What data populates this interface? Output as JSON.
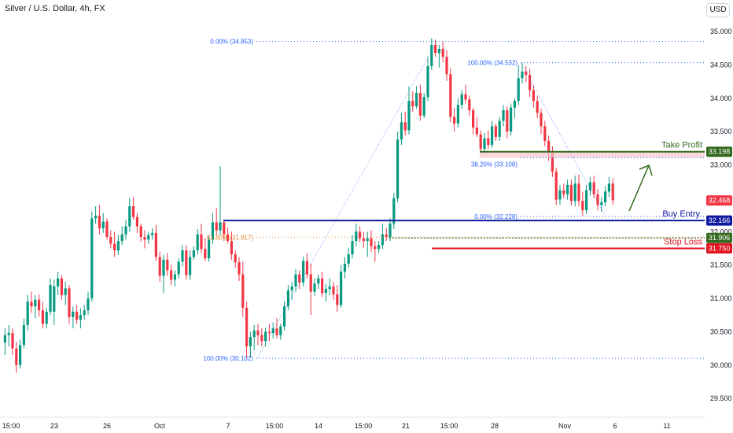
{
  "header": {
    "title": "Silver / U.S. Dollar, 4h, FX",
    "currency": "USD"
  },
  "colors": {
    "up": "#089981",
    "down": "#f23645",
    "fib": "#2962ff",
    "take_profit": "#33691e",
    "buy_entry": "#0d1aa0",
    "stop_loss": "#e0131f",
    "level_orange": "#e08a2c"
  },
  "chart_data": {
    "type": "candlestick",
    "title": "Silver / U.S. Dollar, 4h, FX",
    "ylim": [
      29.35,
      35.25
    ],
    "yticks": [
      "35.000",
      "34.500",
      "34.000",
      "33.500",
      "33.000",
      "32.500",
      "32.000",
      "31.500",
      "31.000",
      "30.500",
      "30.000",
      "29.500"
    ],
    "xticks": [
      "15:00",
      "23",
      "26",
      "Oct",
      "7",
      "15:00",
      "14",
      "15:00",
      "21",
      "15:00",
      "28",
      "Nov",
      "6",
      "11"
    ],
    "series": [
      {
        "ohlc": [
          [
            30.34,
            30.55,
            30.15,
            30.45
          ],
          [
            30.45,
            30.6,
            30.28,
            30.48
          ],
          [
            30.48,
            30.55,
            30.15,
            30.25
          ],
          [
            30.25,
            30.35,
            29.88,
            30.0
          ],
          [
            30.0,
            30.38,
            29.95,
            30.3
          ],
          [
            30.3,
            30.7,
            30.25,
            30.6
          ],
          [
            30.6,
            31.05,
            30.52,
            30.95
          ],
          [
            30.95,
            31.1,
            30.78,
            30.88
          ],
          [
            30.88,
            31.05,
            30.7,
            30.98
          ],
          [
            30.98,
            31.06,
            30.72,
            30.82
          ],
          [
            30.82,
            30.95,
            30.55,
            30.62
          ],
          [
            30.62,
            30.86,
            30.55,
            30.8
          ],
          [
            30.8,
            31.3,
            30.75,
            31.2
          ],
          [
            30.8,
            31.28,
            30.6,
            31.18
          ],
          [
            31.18,
            31.4,
            31.05,
            31.3
          ],
          [
            31.3,
            31.35,
            30.98,
            31.05
          ],
          [
            31.05,
            31.25,
            30.9,
            31.15
          ],
          [
            31.15,
            31.2,
            30.62,
            30.72
          ],
          [
            30.72,
            30.88,
            30.55,
            30.8
          ],
          [
            30.8,
            30.9,
            30.62,
            30.68
          ],
          [
            30.68,
            30.85,
            30.55,
            30.75
          ],
          [
            30.75,
            30.9,
            30.68,
            30.82
          ],
          [
            30.82,
            31.1,
            30.75,
            31.0
          ],
          [
            31.0,
            32.3,
            30.95,
            32.2
          ],
          [
            32.2,
            32.38,
            32.12,
            32.24
          ],
          [
            32.24,
            32.4,
            31.96,
            32.05
          ],
          [
            32.05,
            32.28,
            31.98,
            32.15
          ],
          [
            32.15,
            32.2,
            31.88,
            31.92
          ],
          [
            31.92,
            32.02,
            31.75,
            31.82
          ],
          [
            31.82,
            32.0,
            31.62,
            31.72
          ],
          [
            31.72,
            31.95,
            31.65,
            31.86
          ],
          [
            31.86,
            32.08,
            31.8,
            31.96
          ],
          [
            31.96,
            32.18,
            31.88,
            32.08
          ],
          [
            32.08,
            32.5,
            32.0,
            32.38
          ],
          [
            32.38,
            32.52,
            32.18,
            32.22
          ],
          [
            32.22,
            32.28,
            31.98,
            32.08
          ],
          [
            32.08,
            32.12,
            31.85,
            31.92
          ],
          [
            31.92,
            32.02,
            31.75,
            31.88
          ],
          [
            31.88,
            32.0,
            31.82,
            31.95
          ],
          [
            31.95,
            32.05,
            31.88,
            31.98
          ],
          [
            31.98,
            32.1,
            31.56,
            31.62
          ],
          [
            31.62,
            31.7,
            31.25,
            31.34
          ],
          [
            31.34,
            31.65,
            31.08,
            31.58
          ],
          [
            31.58,
            31.68,
            31.34,
            31.42
          ],
          [
            31.42,
            31.5,
            31.2,
            31.28
          ],
          [
            31.28,
            31.42,
            31.18,
            31.36
          ],
          [
            31.36,
            31.6,
            31.3,
            31.55
          ],
          [
            31.55,
            31.8,
            31.48,
            31.72
          ],
          [
            31.72,
            31.8,
            31.28,
            31.35
          ],
          [
            31.35,
            31.72,
            31.28,
            31.62
          ],
          [
            31.62,
            31.78,
            31.58,
            31.72
          ],
          [
            31.72,
            32.04,
            31.66,
            31.96
          ],
          [
            31.96,
            32.12,
            31.68,
            31.74
          ],
          [
            31.74,
            31.9,
            31.56,
            31.6
          ],
          [
            31.6,
            31.95,
            31.55,
            31.88
          ],
          [
            31.88,
            32.28,
            31.82,
            32.14
          ],
          [
            32.14,
            32.35,
            31.94,
            32.02
          ],
          [
            32.02,
            32.98,
            31.95,
            32.14
          ],
          [
            32.14,
            32.18,
            31.86,
            31.96
          ],
          [
            31.96,
            32.06,
            31.82,
            31.86
          ],
          [
            31.86,
            32.0,
            31.58,
            31.66
          ],
          [
            31.66,
            31.72,
            31.46,
            31.54
          ],
          [
            31.54,
            31.62,
            31.26,
            31.36
          ],
          [
            31.36,
            31.55,
            30.72,
            30.86
          ],
          [
            30.86,
            30.95,
            30.1,
            30.28
          ],
          [
            30.28,
            30.5,
            30.12,
            30.42
          ],
          [
            30.42,
            30.6,
            30.22,
            30.52
          ],
          [
            30.52,
            30.62,
            30.3,
            30.45
          ],
          [
            30.45,
            30.55,
            30.28,
            30.36
          ],
          [
            30.36,
            30.56,
            30.28,
            30.5
          ],
          [
            30.5,
            30.62,
            30.36,
            30.48
          ],
          [
            30.48,
            30.64,
            30.4,
            30.55
          ],
          [
            30.55,
            30.7,
            30.4,
            30.45
          ],
          [
            30.45,
            30.62,
            30.38,
            30.58
          ],
          [
            30.58,
            30.96,
            30.52,
            30.88
          ],
          [
            30.88,
            31.2,
            30.82,
            31.12
          ],
          [
            31.12,
            31.25,
            30.98,
            31.18
          ],
          [
            31.18,
            31.44,
            31.1,
            31.36
          ],
          [
            31.36,
            31.42,
            31.14,
            31.24
          ],
          [
            31.24,
            31.62,
            31.18,
            31.56
          ],
          [
            31.56,
            31.68,
            31.3,
            31.36
          ],
          [
            31.36,
            31.52,
            30.75,
            31.1
          ],
          [
            31.1,
            31.3,
            31.04,
            31.22
          ],
          [
            31.22,
            31.36,
            31.14,
            31.3
          ],
          [
            31.3,
            31.4,
            31.02,
            31.08
          ],
          [
            31.08,
            31.22,
            30.95,
            31.14
          ],
          [
            31.14,
            31.3,
            31.05,
            31.18
          ],
          [
            31.18,
            31.25,
            30.98,
            31.06
          ],
          [
            31.06,
            31.2,
            30.8,
            30.9
          ],
          [
            30.9,
            31.5,
            30.86,
            31.4
          ],
          [
            31.4,
            31.62,
            31.3,
            31.52
          ],
          [
            31.52,
            31.76,
            31.46,
            31.66
          ],
          [
            31.66,
            31.95,
            31.6,
            31.86
          ],
          [
            31.86,
            32.12,
            31.78,
            32.0
          ],
          [
            32.0,
            32.08,
            31.84,
            31.9
          ],
          [
            31.9,
            32.0,
            31.76,
            31.86
          ],
          [
            31.86,
            32.0,
            31.62,
            31.9
          ],
          [
            31.9,
            32.02,
            31.7,
            31.78
          ],
          [
            31.78,
            31.86,
            31.55,
            31.74
          ],
          [
            31.74,
            31.86,
            31.68,
            31.8
          ],
          [
            31.8,
            32.12,
            31.74,
            31.96
          ],
          [
            31.96,
            32.06,
            31.86,
            31.92
          ],
          [
            31.92,
            32.2,
            31.86,
            32.12
          ],
          [
            32.12,
            32.58,
            32.04,
            32.5
          ],
          [
            32.5,
            33.5,
            32.44,
            33.38
          ],
          [
            33.38,
            33.78,
            33.3,
            33.64
          ],
          [
            33.64,
            33.8,
            33.44,
            33.52
          ],
          [
            33.52,
            34.18,
            33.46,
            33.96
          ],
          [
            33.96,
            34.1,
            33.8,
            33.88
          ],
          [
            33.88,
            34.18,
            33.84,
            34.08
          ],
          [
            34.08,
            34.2,
            33.66,
            33.74
          ],
          [
            33.74,
            34.08,
            33.7,
            34.02
          ],
          [
            34.02,
            34.62,
            33.96,
            34.48
          ],
          [
            34.48,
            34.9,
            34.42,
            34.8
          ],
          [
            34.8,
            34.88,
            34.62,
            34.68
          ],
          [
            34.68,
            34.8,
            34.46,
            34.74
          ],
          [
            34.74,
            34.85,
            34.54,
            34.62
          ],
          [
            34.62,
            34.72,
            34.26,
            34.36
          ],
          [
            34.36,
            34.45,
            33.64,
            33.72
          ],
          [
            33.72,
            33.86,
            33.5,
            33.62
          ],
          [
            33.62,
            34.0,
            33.56,
            33.9
          ],
          [
            33.9,
            34.12,
            33.84,
            34.06
          ],
          [
            34.06,
            34.2,
            33.92,
            33.98
          ],
          [
            33.98,
            34.04,
            33.74,
            33.82
          ],
          [
            33.82,
            33.86,
            33.46,
            33.56
          ],
          [
            33.56,
            33.72,
            33.42,
            33.46
          ],
          [
            33.46,
            33.52,
            33.18,
            33.24
          ],
          [
            33.24,
            33.48,
            33.18,
            33.4
          ],
          [
            33.4,
            33.52,
            33.24,
            33.3
          ],
          [
            33.3,
            33.66,
            33.26,
            33.58
          ],
          [
            33.58,
            33.62,
            33.36,
            33.42
          ],
          [
            33.42,
            33.72,
            33.36,
            33.66
          ],
          [
            33.66,
            33.9,
            33.58,
            33.82
          ],
          [
            33.82,
            33.88,
            33.4,
            33.5
          ],
          [
            33.5,
            33.92,
            33.44,
            33.86
          ],
          [
            33.86,
            34.0,
            33.7,
            33.96
          ],
          [
            33.96,
            34.5,
            33.9,
            34.3
          ],
          [
            34.3,
            34.53,
            34.22,
            34.4
          ],
          [
            34.4,
            34.48,
            34.24,
            34.35
          ],
          [
            34.35,
            34.44,
            34.02,
            34.12
          ],
          [
            34.12,
            34.2,
            33.86,
            33.96
          ],
          [
            33.96,
            34.04,
            33.7,
            33.78
          ],
          [
            33.78,
            33.84,
            33.46,
            33.58
          ],
          [
            33.58,
            33.66,
            33.28,
            33.36
          ],
          [
            33.36,
            33.44,
            33.06,
            33.18
          ],
          [
            33.18,
            33.28,
            32.82,
            32.9
          ],
          [
            32.9,
            32.96,
            32.4,
            32.48
          ],
          [
            32.48,
            32.7,
            32.4,
            32.62
          ],
          [
            32.62,
            32.72,
            32.5,
            32.56
          ],
          [
            32.56,
            32.78,
            32.48,
            32.7
          ],
          [
            32.7,
            32.78,
            32.4,
            32.46
          ],
          [
            32.46,
            32.84,
            32.38,
            32.72
          ],
          [
            32.72,
            32.86,
            32.38,
            32.46
          ],
          [
            32.46,
            32.6,
            32.24,
            32.32
          ],
          [
            32.32,
            32.7,
            32.26,
            32.62
          ],
          [
            32.62,
            32.82,
            32.54,
            32.74
          ],
          [
            32.74,
            32.84,
            32.5,
            32.56
          ],
          [
            32.56,
            32.64,
            32.32,
            32.4
          ],
          [
            32.4,
            32.52,
            32.3,
            32.44
          ],
          [
            32.44,
            32.68,
            32.38,
            32.6
          ],
          [
            32.6,
            32.82,
            32.52,
            32.72
          ],
          [
            32.72,
            32.8,
            32.4,
            32.47
          ]
        ]
      }
    ]
  },
  "fib_top": {
    "levels": [
      "0.00% (34.853)",
      "61.80% (31.917)",
      "100.00% (30.102)"
    ]
  },
  "fib_bottom": {
    "levels": [
      "100.00% (34.532)",
      "38.20% (33.108)",
      "0.00% (32.228)"
    ]
  },
  "levels": {
    "take_profit": {
      "label": "Take Profit",
      "price": "33.198"
    },
    "buy_entry": {
      "label": "Buy Entry",
      "price": "32.166"
    },
    "stop_loss": {
      "label": "Stop Loss",
      "price": "31.750"
    },
    "mid": {
      "price": "31.906"
    },
    "last": {
      "price": "32.468"
    }
  }
}
